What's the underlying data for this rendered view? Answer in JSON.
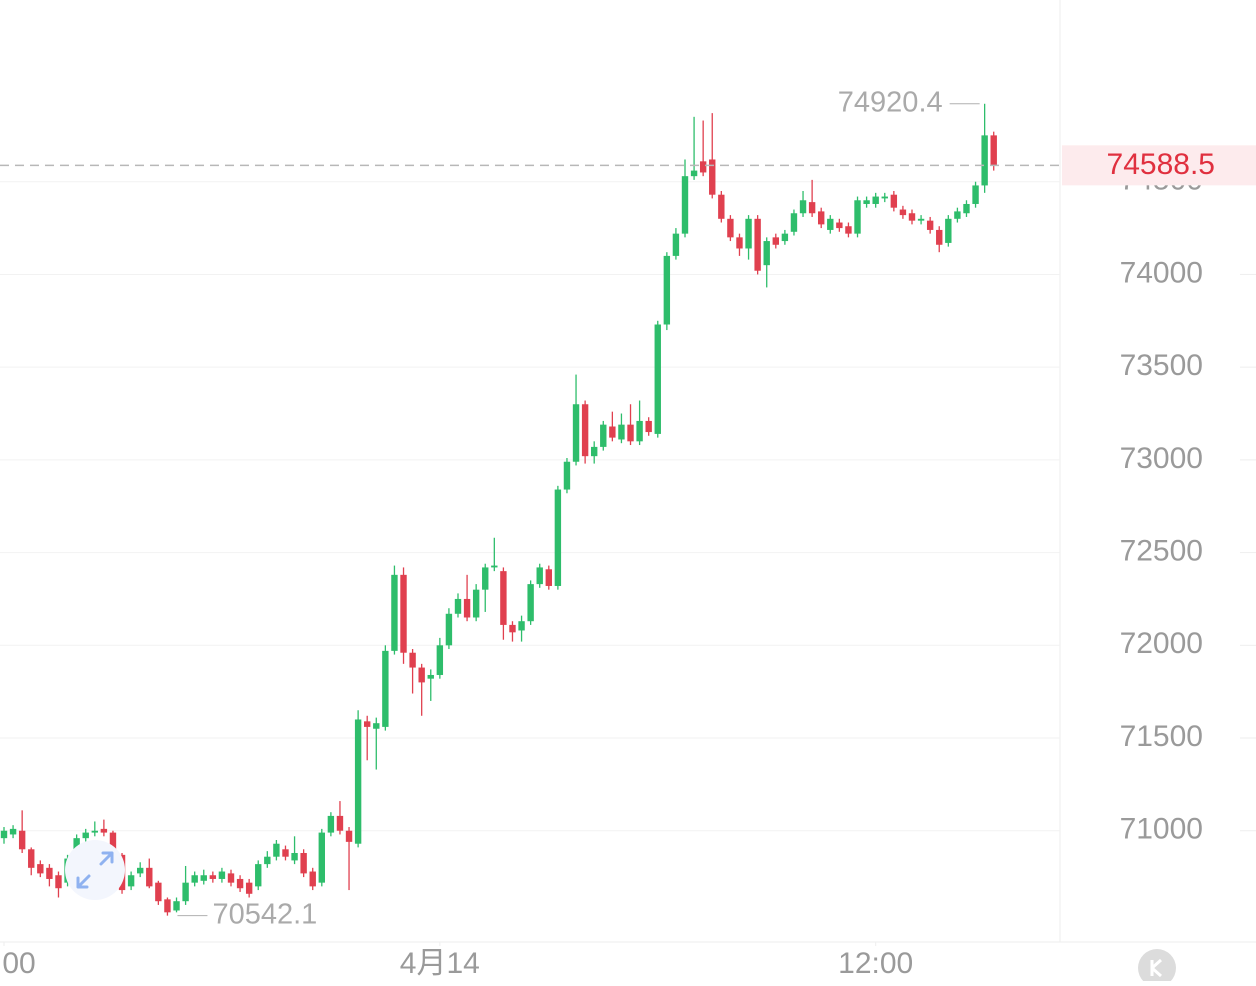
{
  "chart_data": {
    "type": "candlestick",
    "ylim": [
      70400,
      75480
    ],
    "yticks": [
      71000,
      71500,
      72000,
      72500,
      73000,
      73500,
      74000,
      74500
    ],
    "xticks": [
      {
        "value": 0,
        "label": "00"
      },
      {
        "value": 48,
        "label": "4月14"
      },
      {
        "value": 96,
        "label": "12:00"
      }
    ],
    "up_color": "#2ebd6b",
    "down_color": "#e0404f",
    "grid": true,
    "open": [
      70960,
      70980,
      71000,
      70900,
      70820,
      70800,
      70760,
      70720,
      70850,
      70960,
      70990,
      71010,
      70990,
      70870,
      70700,
      70770,
      70800,
      70720,
      70630,
      70570,
      70620,
      70720,
      70730,
      70760,
      70740,
      70770,
      70740,
      70720,
      70700,
      70820,
      70860,
      70900,
      70840,
      70880,
      70780,
      70720,
      70990,
      71080,
      71000,
      70930,
      71590,
      71550,
      71560,
      71970,
      72380,
      71960,
      71880,
      71820,
      71840,
      72000,
      72170,
      72250,
      72150,
      72300,
      72420,
      72400,
      72110,
      72080,
      72130,
      72330,
      72410,
      72320,
      72840,
      72990,
      73300,
      73020,
      73070,
      73180,
      73110,
      73190,
      73100,
      73210,
      73140,
      73730,
      74100,
      74220,
      74530,
      74610,
      74620,
      74430,
      74300,
      74200,
      74140,
      74300,
      74050,
      74200,
      74180,
      74230,
      74330,
      74390,
      74340,
      74240,
      74280,
      74260,
      74220,
      74380,
      74380,
      74410,
      74430,
      74350,
      74330,
      74290,
      74290,
      74240,
      74170,
      74300,
      74330,
      74380,
      74480,
      74750
    ],
    "high": [
      71020,
      71030,
      71110,
      70910,
      70840,
      70820,
      70780,
      70870,
      70980,
      71010,
      71050,
      71060,
      71000,
      70880,
      70780,
      70830,
      70850,
      70730,
      70640,
      70640,
      70810,
      70780,
      70790,
      70780,
      70800,
      70790,
      70760,
      70740,
      70840,
      70890,
      70950,
      70920,
      70970,
      70900,
      70800,
      71010,
      71100,
      71160,
      71020,
      71650,
      71620,
      71610,
      72000,
      72430,
      72420,
      71980,
      71900,
      71870,
      72040,
      72200,
      72280,
      72380,
      72330,
      72440,
      72580,
      72420,
      72130,
      72160,
      72350,
      72440,
      72430,
      72860,
      73010,
      73460,
      73320,
      73100,
      73210,
      73260,
      73250,
      73300,
      73320,
      73230,
      73750,
      74120,
      74250,
      74620,
      74850,
      74830,
      74870,
      74450,
      74320,
      74220,
      74320,
      74320,
      74200,
      74220,
      74240,
      74350,
      74450,
      74510,
      74360,
      74320,
      74300,
      74280,
      74420,
      74420,
      74440,
      74440,
      74450,
      74370,
      74350,
      74320,
      74310,
      74260,
      74320,
      74360,
      74400,
      74500,
      74920.4,
      74770
    ],
    "low": [
      70930,
      70960,
      70880,
      70760,
      70750,
      70700,
      70640,
      70700,
      70830,
      70940,
      70970,
      70970,
      70850,
      70660,
      70680,
      70750,
      70690,
      70600,
      70542.1,
      70560,
      70600,
      70700,
      70710,
      70720,
      70720,
      70700,
      70670,
      70640,
      70680,
      70800,
      70840,
      70840,
      70820,
      70750,
      70680,
      70700,
      70970,
      70980,
      70680,
      70910,
      71380,
      71330,
      71540,
      71950,
      71900,
      71740,
      71620,
      71700,
      71820,
      71980,
      72150,
      72130,
      72130,
      72180,
      72400,
      72030,
      72020,
      72020,
      72110,
      72310,
      72300,
      72300,
      72820,
      72970,
      72980,
      72980,
      73050,
      73100,
      73090,
      73080,
      73080,
      73130,
      73120,
      73700,
      74080,
      74200,
      74510,
      74530,
      74410,
      74280,
      74180,
      74100,
      74080,
      74000,
      73930,
      74140,
      74160,
      74210,
      74310,
      74310,
      74250,
      74220,
      74230,
      74200,
      74200,
      74360,
      74360,
      74390,
      74340,
      74300,
      74270,
      74270,
      74220,
      74120,
      74150,
      74280,
      74310,
      74360,
      74440,
      74560
    ],
    "close": [
      71000,
      71010,
      70900,
      70800,
      70770,
      70740,
      70690,
      70850,
      70960,
      70990,
      71000,
      70990,
      70870,
      70680,
      70760,
      70800,
      70700,
      70620,
      70560,
      70620,
      70720,
      70760,
      70760,
      70740,
      70780,
      70720,
      70690,
      70660,
      70820,
      70860,
      70930,
      70860,
      70880,
      70770,
      70700,
      70990,
      71080,
      71000,
      70940,
      71600,
      71560,
      71580,
      71970,
      72380,
      71960,
      71880,
      71800,
      71840,
      72000,
      72170,
      72250,
      72150,
      72300,
      72420,
      72430,
      72110,
      72070,
      72130,
      72330,
      72420,
      72320,
      72840,
      72990,
      73300,
      73020,
      73070,
      73190,
      73120,
      73190,
      73100,
      73210,
      73150,
      73730,
      74100,
      74220,
      74530,
      74560,
      74550,
      74430,
      74300,
      74200,
      74140,
      74300,
      74020,
      74180,
      74160,
      74220,
      74330,
      74400,
      74330,
      74270,
      74300,
      74250,
      74220,
      74400,
      74400,
      74420,
      74420,
      74360,
      74320,
      74290,
      74300,
      74240,
      74160,
      74300,
      74340,
      74380,
      74480,
      74750,
      74588.5
    ]
  }
}
